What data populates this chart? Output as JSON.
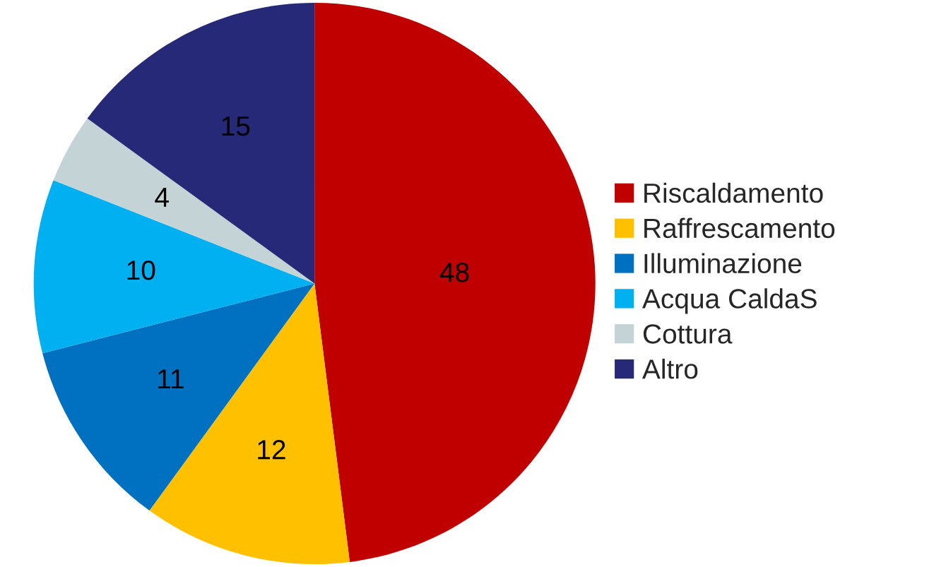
{
  "chart_data": {
    "type": "pie",
    "categories": [
      "Riscaldamento",
      "Raffrescamento",
      "Illuminazione",
      "Acqua CaldaS",
      "Cottura",
      "Altro"
    ],
    "values": [
      48,
      12,
      11,
      10,
      4,
      15
    ],
    "colors": [
      "#c00000",
      "#ffc000",
      "#0070c0",
      "#00b0f0",
      "#c4d3d6",
      "#262878"
    ],
    "data_labels": true,
    "legend": "right"
  }
}
